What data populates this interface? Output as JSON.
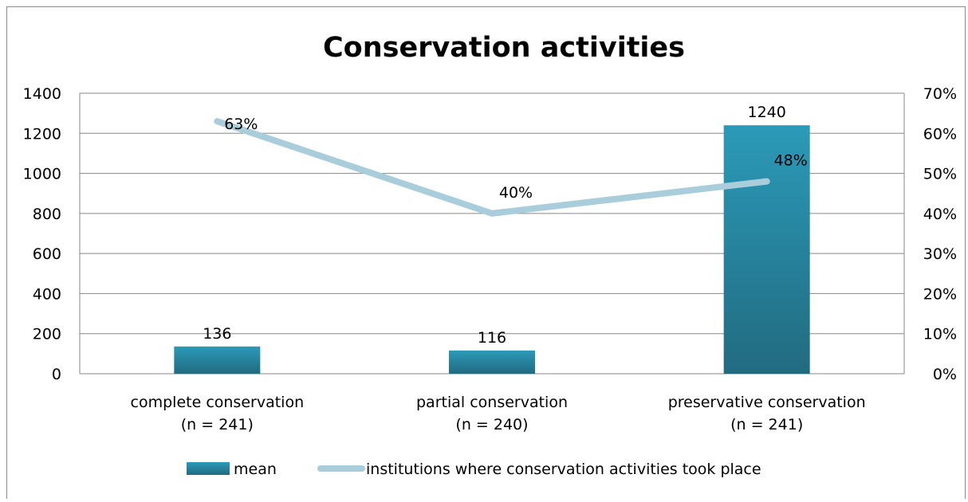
{
  "chart_data": {
    "type": "bar",
    "title": "Conservation activities",
    "categories": [
      [
        "complete conservation",
        "(n = 241)"
      ],
      [
        "partial conservation",
        "(n = 240)"
      ],
      [
        "preservative conservation",
        "(n = 241)"
      ]
    ],
    "left_axis": {
      "ticks": [
        "0",
        "200",
        "400",
        "600",
        "800",
        "1000",
        "1200",
        "1400"
      ],
      "ylim": [
        0,
        1400
      ]
    },
    "right_axis": {
      "ticks": [
        "0%",
        "10%",
        "20%",
        "30%",
        "40%",
        "50%",
        "60%",
        "70%"
      ],
      "ylim": [
        0,
        70
      ]
    },
    "grid": true,
    "legend_position": "bottom",
    "series": [
      {
        "name": "mean",
        "kind": "bar",
        "axis": "left",
        "values": [
          136,
          116,
          1240
        ],
        "labels": [
          "136",
          "116",
          "1240"
        ],
        "color_top": "#2b9ab8",
        "color_bottom": "#216b80"
      },
      {
        "name": "institutions where conservation activities took place",
        "kind": "line",
        "axis": "right",
        "values": [
          63,
          40,
          48
        ],
        "labels": [
          "63%",
          "40%",
          "48%"
        ],
        "color": "#a9cdda"
      }
    ]
  }
}
